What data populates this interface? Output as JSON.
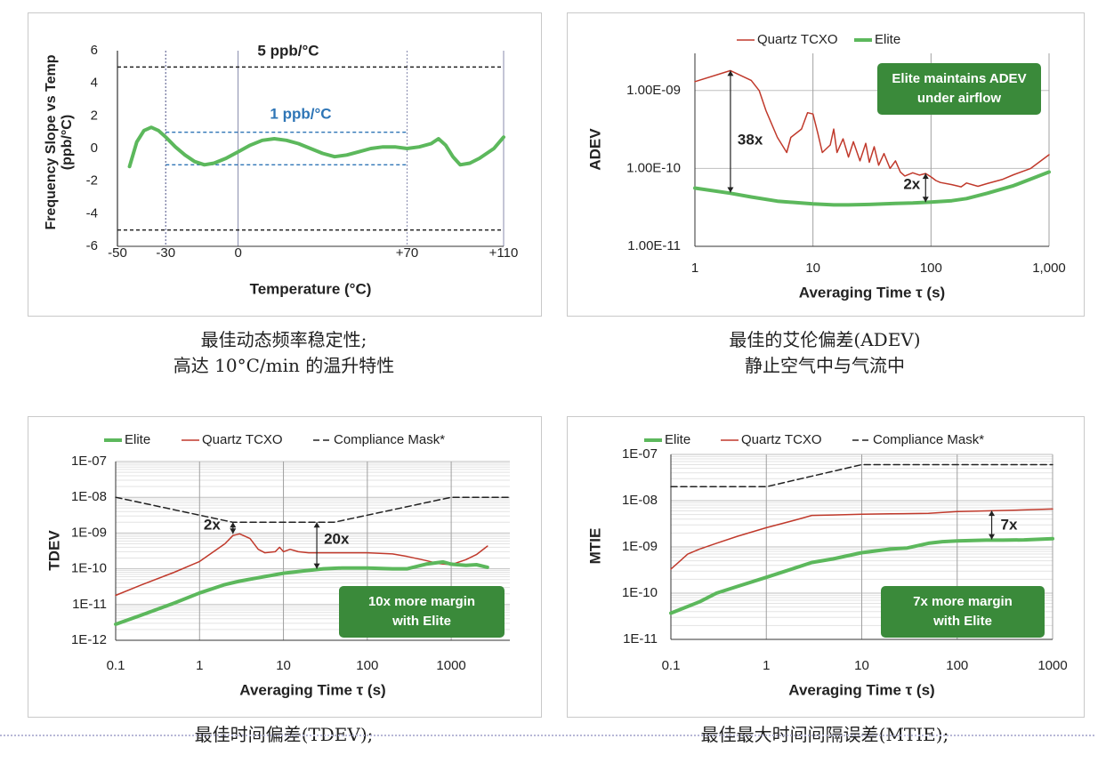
{
  "chart_data": [
    {
      "type": "line",
      "title": "",
      "xlabel": "Temperature (°C)",
      "ylabel": "Frequency Slope vs Temp\n(ppb/°C)",
      "xlim": [
        -50,
        110
      ],
      "ylim": [
        -6,
        6
      ],
      "x_ticks": [
        -50,
        -30,
        0,
        70,
        110
      ],
      "x_tick_labels": [
        "-50",
        "-30",
        "0",
        "+70",
        "+110"
      ],
      "y_ticks": [
        -6,
        -4,
        -2,
        0,
        2,
        4,
        6
      ],
      "y_tick_labels": [
        "-6",
        "-4",
        "-2",
        "0",
        "2",
        "4",
        "6"
      ],
      "grid": "vertical",
      "series": [
        {
          "color": "#5cb85c",
          "x": [
            -45,
            -42,
            -39,
            -36,
            -33,
            -30,
            -26,
            -22,
            -18,
            -14,
            -10,
            -5,
            0,
            5,
            10,
            15,
            20,
            25,
            30,
            35,
            40,
            45,
            50,
            55,
            60,
            65,
            70,
            75,
            80,
            83,
            86,
            89,
            92,
            96,
            100,
            103,
            106,
            110
          ],
          "y": [
            -1.1,
            0.4,
            1.1,
            1.3,
            1.1,
            0.7,
            0.1,
            -0.4,
            -0.8,
            -1.0,
            -0.9,
            -0.6,
            -0.2,
            0.2,
            0.5,
            0.6,
            0.5,
            0.3,
            0.0,
            -0.3,
            -0.5,
            -0.4,
            -0.2,
            0.0,
            0.1,
            0.1,
            0.0,
            0.1,
            0.3,
            0.6,
            0.2,
            -0.5,
            -1.0,
            -0.9,
            -0.6,
            -0.3,
            0.0,
            0.7
          ]
        }
      ],
      "reference_lines": [
        {
          "label": "5 ppb/°C",
          "y": [
            5,
            -5
          ],
          "x": [
            -50,
            110
          ],
          "color": "#222222",
          "style": "dashed"
        },
        {
          "label": "1 ppb/°C",
          "y": [
            1,
            -1
          ],
          "x": [
            -30,
            70
          ],
          "color": "#2e75b6",
          "style": "dashed"
        }
      ],
      "caption": [
        "最佳动态频率稳定性;",
        "高达 10°C/min 的温升特性"
      ]
    },
    {
      "type": "line",
      "title": "",
      "xlabel": "Averaging Time τ (s)",
      "ylabel": "ADEV",
      "x_scale": "log",
      "y_scale": "log",
      "xlim": [
        1,
        1000
      ],
      "ylim": [
        1e-11,
        3e-09
      ],
      "x_tick_labels": [
        "1",
        "10",
        "100",
        "1,000"
      ],
      "y_tick_labels": [
        "1.00E-11",
        "1.00E-10",
        "1.00E-09"
      ],
      "legend": "top",
      "series": [
        {
          "name": "Quartz TCXO",
          "color": "#c0392b",
          "x": [
            1,
            2,
            3,
            3.5,
            4,
            5,
            6,
            6.5,
            8,
            9,
            10,
            11,
            12,
            14,
            15,
            16,
            18,
            20,
            22,
            25,
            28,
            30,
            33,
            36,
            40,
            45,
            50,
            55,
            60,
            70,
            80,
            90,
            100,
            110,
            120,
            150,
            180,
            200,
            250,
            300,
            400,
            500,
            700,
            1000
          ],
          "y": [
            1.3e-09,
            1.8e-09,
            1.35e-09,
            1e-09,
            5.5e-10,
            2.5e-10,
            1.6e-10,
            2.5e-10,
            3.2e-10,
            5.2e-10,
            5e-10,
            2.8e-10,
            1.6e-10,
            2e-10,
            3.2e-10,
            1.6e-10,
            2.4e-10,
            1.4e-10,
            2.2e-10,
            1.25e-10,
            2.1e-10,
            1.2e-10,
            1.9e-10,
            1.1e-10,
            1.55e-10,
            1e-10,
            1.25e-10,
            9e-11,
            8e-11,
            8.8e-11,
            8.2e-11,
            8.6e-11,
            7.8e-11,
            7e-11,
            6.6e-11,
            6.2e-11,
            5.8e-11,
            6.5e-11,
            5.9e-11,
            6.4e-11,
            7.2e-11,
            8.3e-11,
            1e-10,
            1.5e-10
          ]
        },
        {
          "name": "Elite",
          "color": "#5cb85c",
          "x": [
            1,
            2,
            3,
            5,
            10,
            15,
            20,
            30,
            50,
            70,
            100,
            150,
            200,
            300,
            500,
            700,
            1000
          ],
          "y": [
            5.6e-11,
            4.8e-11,
            4.3e-11,
            3.8e-11,
            3.5e-11,
            3.4e-11,
            3.4e-11,
            3.45e-11,
            3.55e-11,
            3.6e-11,
            3.7e-11,
            3.85e-11,
            4.1e-11,
            4.8e-11,
            6e-11,
            7.3e-11,
            9e-11
          ]
        }
      ],
      "annotations": [
        {
          "text": "38x",
          "x": 2
        },
        {
          "text": "2x",
          "x": 90
        },
        {
          "text": "Elite maintains ADEV\nunder airflow",
          "color": "#3a8a3a"
        }
      ],
      "caption": [
        "最佳的艾伦偏差(ADEV)",
        "静止空气中与气流中"
      ]
    },
    {
      "type": "line",
      "title": "",
      "xlabel": "Averaging Time τ (s)",
      "ylabel": "TDEV",
      "x_scale": "log",
      "y_scale": "log",
      "xlim": [
        0.1,
        5000
      ],
      "ylim": [
        1e-12,
        1e-07
      ],
      "x_tick_labels": [
        "0.1",
        "1",
        "10",
        "100",
        "1000"
      ],
      "y_tick_labels": [
        "1E-12",
        "1E-11",
        "1E-10",
        "1E-09",
        "1E-08",
        "1E-07"
      ],
      "legend": "top",
      "series": [
        {
          "name": "Elite",
          "color": "#5cb85c",
          "x": [
            0.1,
            0.2,
            0.5,
            1,
            2,
            3,
            5,
            10,
            20,
            30,
            50,
            100,
            200,
            300,
            500,
            800,
            1000,
            1500,
            2000,
            2700
          ],
          "y": [
            2.8e-12,
            5e-12,
            1.1e-11,
            2.1e-11,
            3.6e-11,
            4.5e-11,
            5.6e-11,
            7.5e-11,
            9e-11,
            1e-10,
            1.05e-10,
            1.05e-10,
            1e-10,
            1e-10,
            1.35e-10,
            1.55e-10,
            1.35e-10,
            1.25e-10,
            1.3e-10,
            1.1e-10
          ]
        },
        {
          "name": "Quartz TCXO",
          "color": "#c0392b",
          "x": [
            0.1,
            0.2,
            0.5,
            1,
            2,
            2.5,
            3,
            4,
            5,
            6,
            8,
            9,
            10,
            12,
            15,
            20,
            30,
            50,
            100,
            200,
            300,
            500,
            700,
            1000,
            1500,
            2000,
            2700
          ],
          "y": [
            1.8e-11,
            3.5e-11,
            8e-11,
            1.6e-10,
            5e-10,
            8.5e-10,
            9.5e-10,
            7e-10,
            3.5e-10,
            2.8e-10,
            3e-10,
            4e-10,
            3e-10,
            3.5e-10,
            3e-10,
            2.8e-10,
            2.8e-10,
            2.8e-10,
            2.8e-10,
            2.6e-10,
            2.2e-10,
            1.7e-10,
            1.4e-10,
            1.3e-10,
            1.8e-10,
            2.5e-10,
            4.3e-10
          ]
        },
        {
          "name": "Compliance Mask*",
          "color": "#222222",
          "style": "dashed",
          "x": [
            0.1,
            2.5,
            40,
            1000,
            5000
          ],
          "y": [
            1e-08,
            2e-09,
            2e-09,
            1e-08,
            1e-08
          ]
        }
      ],
      "annotations": [
        {
          "text": "2x",
          "x": 2.5
        },
        {
          "text": "20x",
          "x": 25
        },
        {
          "text": "10x more margin\nwith Elite",
          "color": "#3a8a3a"
        }
      ],
      "caption": [
        "最佳时间偏差(TDEV);"
      ]
    },
    {
      "type": "line",
      "title": "",
      "xlabel": "Averaging Time τ (s)",
      "ylabel": "MTIE",
      "x_scale": "log",
      "y_scale": "log",
      "xlim": [
        0.1,
        1000
      ],
      "ylim": [
        1e-11,
        1e-07
      ],
      "x_tick_labels": [
        "0.1",
        "1",
        "10",
        "100",
        "1000"
      ],
      "y_tick_labels": [
        "1E-11",
        "1E-10",
        "1E-09",
        "1E-08",
        "1E-07"
      ],
      "legend": "top",
      "series": [
        {
          "name": "Elite",
          "color": "#5cb85c",
          "x": [
            0.1,
            0.2,
            0.3,
            0.5,
            1,
            2,
            3,
            5,
            10,
            20,
            30,
            50,
            70,
            100,
            200,
            300,
            500,
            1000
          ],
          "y": [
            3.7e-11,
            6.5e-11,
            1e-10,
            1.4e-10,
            2.2e-10,
            3.5e-10,
            4.6e-10,
            5.5e-10,
            7.5e-10,
            9e-10,
            9.5e-10,
            1.2e-09,
            1.3e-09,
            1.35e-09,
            1.4e-09,
            1.4e-09,
            1.42e-09,
            1.5e-09
          ]
        },
        {
          "name": "Quartz TCXO",
          "color": "#c0392b",
          "x": [
            0.1,
            0.15,
            0.2,
            0.3,
            0.5,
            1,
            2,
            3,
            5,
            10,
            20,
            50,
            100,
            200,
            500,
            1000
          ],
          "y": [
            3.3e-10,
            7e-10,
            9e-10,
            1.2e-09,
            1.7e-09,
            2.6e-09,
            3.8e-09,
            4.8e-09,
            4.9e-09,
            5.1e-09,
            5.2e-09,
            5.3e-09,
            5.8e-09,
            6e-09,
            6.3e-09,
            6.6e-09
          ]
        },
        {
          "name": "Compliance Mask*",
          "color": "#222222",
          "style": "dashed",
          "x": [
            0.1,
            1,
            10,
            1000
          ],
          "y": [
            2e-08,
            2e-08,
            6e-08,
            6e-08
          ]
        }
      ],
      "annotations": [
        {
          "text": "7x",
          "x": 230
        },
        {
          "text": "7x more margin\nwith Elite",
          "color": "#3a8a3a"
        }
      ],
      "caption": [
        "最佳最大时间间隔误差(MTIE);"
      ]
    }
  ]
}
